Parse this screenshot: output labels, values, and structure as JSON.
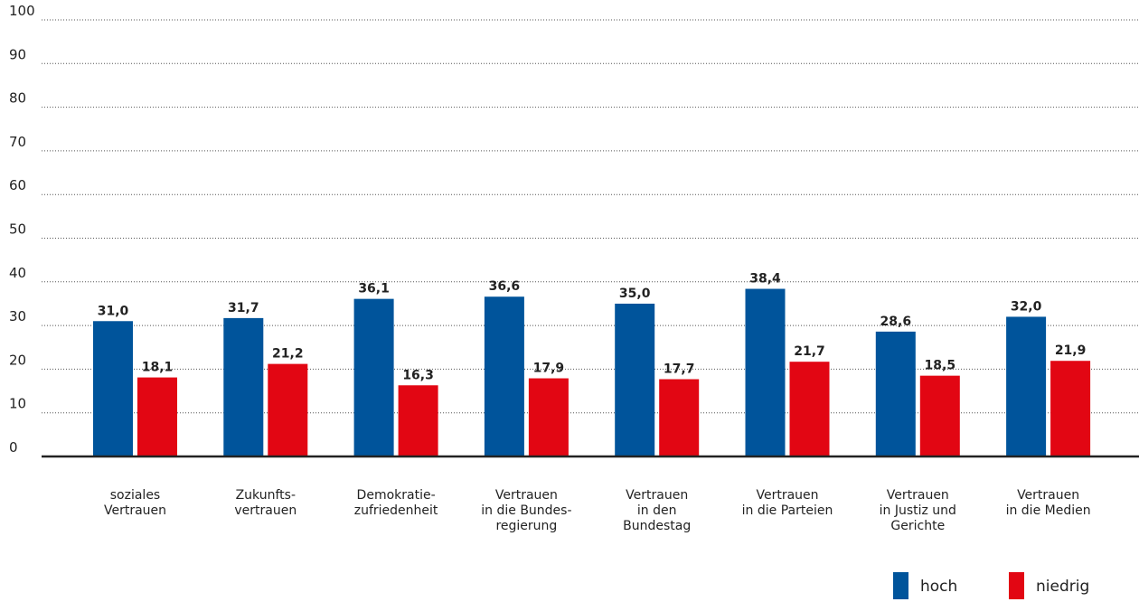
{
  "chart_data": {
    "type": "bar",
    "title": "",
    "xlabel": "",
    "ylabel": "",
    "ylim": [
      0,
      100
    ],
    "yticks": [
      0,
      10,
      20,
      30,
      40,
      50,
      60,
      70,
      80,
      90,
      100
    ],
    "grid": true,
    "legend_position": "bottom-right",
    "categories": [
      [
        "soziales",
        "Vertrauen"
      ],
      [
        "Zukunfts-",
        "vertrauen"
      ],
      [
        "Demokratie-",
        "zufriedenheit"
      ],
      [
        "Vertrauen",
        "in die Bundes-",
        "regierung"
      ],
      [
        "Vertrauen",
        "in den",
        "Bundestag"
      ],
      [
        "Vertrauen",
        "in die Parteien"
      ],
      [
        "Vertrauen",
        "in Justiz und",
        "Gerichte"
      ],
      [
        "Vertrauen",
        "in die Medien"
      ]
    ],
    "series": [
      {
        "name": "hoch",
        "color": "#00549b",
        "values": [
          31.0,
          31.7,
          36.1,
          36.6,
          35.0,
          38.4,
          28.6,
          32.0
        ],
        "labels": [
          "31,0",
          "31,7",
          "36,1",
          "36,6",
          "35,0",
          "38,4",
          "28,6",
          "32,0"
        ]
      },
      {
        "name": "niedrig",
        "color": "#e20613",
        "values": [
          18.1,
          21.2,
          16.3,
          17.9,
          17.7,
          21.7,
          18.5,
          21.9
        ],
        "labels": [
          "18,1",
          "21,2",
          "16,3",
          "17,9",
          "17,7",
          "21,7",
          "18,5",
          "21,9"
        ]
      }
    ]
  }
}
